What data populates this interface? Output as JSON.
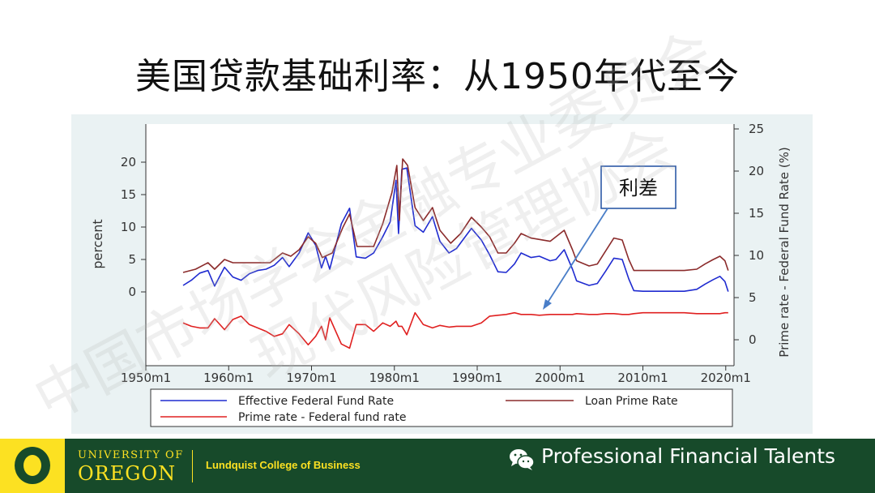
{
  "slide": {
    "title": "美国贷款基础利率：从1950年代至今"
  },
  "chart_data": {
    "type": "line",
    "x_ticks": [
      "1950m1",
      "1960m1",
      "1970m1",
      "1980m1",
      "1990m1",
      "2000m1",
      "2010m1",
      "2020m1"
    ],
    "left_axis": {
      "label": "percent",
      "ticks": [
        0,
        5,
        10,
        15,
        20
      ]
    },
    "right_axis": {
      "label": "Prime rate - Federal Fund Rate (%)",
      "ticks": [
        0,
        5,
        10,
        15,
        20,
        25
      ]
    },
    "annotation": "利差",
    "legend": {
      "placement": "bottom",
      "entries": [
        "Effective Federal Fund Rate",
        "Loan Prime Rate",
        "Prime rate - Federal fund rate"
      ]
    },
    "colors": {
      "effr": "#1f2bd0",
      "prime": "#8b2b2b",
      "spread": "#e02020"
    },
    "series": [
      {
        "name": "Effective Federal Fund Rate",
        "axis": "left",
        "points": [
          [
            1954.5,
            1.0
          ],
          [
            1955.5,
            1.8
          ],
          [
            1956.5,
            2.9
          ],
          [
            1957.5,
            3.3
          ],
          [
            1958.3,
            0.9
          ],
          [
            1959.5,
            3.8
          ],
          [
            1960.5,
            2.3
          ],
          [
            1961.5,
            1.8
          ],
          [
            1962.5,
            2.8
          ],
          [
            1963.5,
            3.3
          ],
          [
            1964.5,
            3.5
          ],
          [
            1965.5,
            4.1
          ],
          [
            1966.5,
            5.3
          ],
          [
            1967.3,
            3.9
          ],
          [
            1968.5,
            6.0
          ],
          [
            1969.6,
            9.1
          ],
          [
            1970.5,
            7.2
          ],
          [
            1971.2,
            3.7
          ],
          [
            1971.7,
            5.5
          ],
          [
            1972.2,
            3.5
          ],
          [
            1973.6,
            10.5
          ],
          [
            1974.6,
            12.9
          ],
          [
            1975.4,
            5.4
          ],
          [
            1976.5,
            5.2
          ],
          [
            1977.5,
            6.0
          ],
          [
            1978.6,
            8.5
          ],
          [
            1979.5,
            10.8
          ],
          [
            1980.2,
            17.2
          ],
          [
            1980.5,
            9.0
          ],
          [
            1980.9,
            18.9
          ],
          [
            1981.5,
            19.1
          ],
          [
            1982.5,
            10.2
          ],
          [
            1983.5,
            9.2
          ],
          [
            1984.6,
            11.6
          ],
          [
            1985.5,
            7.8
          ],
          [
            1986.6,
            6.0
          ],
          [
            1987.5,
            6.7
          ],
          [
            1989.3,
            9.8
          ],
          [
            1990.5,
            8.0
          ],
          [
            1991.5,
            5.7
          ],
          [
            1992.5,
            3.1
          ],
          [
            1993.5,
            3.0
          ],
          [
            1994.5,
            4.3
          ],
          [
            1995.3,
            6.0
          ],
          [
            1996.5,
            5.3
          ],
          [
            1997.5,
            5.5
          ],
          [
            1998.8,
            4.8
          ],
          [
            1999.5,
            5.0
          ],
          [
            2000.5,
            6.5
          ],
          [
            2001.5,
            3.5
          ],
          [
            2002.0,
            1.7
          ],
          [
            2003.5,
            1.0
          ],
          [
            2004.5,
            1.3
          ],
          [
            2005.5,
            3.2
          ],
          [
            2006.5,
            5.2
          ],
          [
            2007.5,
            5.0
          ],
          [
            2008.3,
            2.0
          ],
          [
            2008.9,
            0.2
          ],
          [
            2010.0,
            0.1
          ],
          [
            2012.0,
            0.1
          ],
          [
            2015.0,
            0.1
          ],
          [
            2016.5,
            0.4
          ],
          [
            2017.5,
            1.2
          ],
          [
            2018.5,
            1.9
          ],
          [
            2019.3,
            2.4
          ],
          [
            2019.9,
            1.6
          ],
          [
            2020.3,
            0.05
          ]
        ]
      },
      {
        "name": "Loan Prime Rate",
        "axis": "left",
        "points": [
          [
            1954.5,
            3.0
          ],
          [
            1956.0,
            3.5
          ],
          [
            1957.5,
            4.5
          ],
          [
            1958.3,
            3.5
          ],
          [
            1959.5,
            5.0
          ],
          [
            1960.5,
            4.5
          ],
          [
            1965.0,
            4.5
          ],
          [
            1966.5,
            6.0
          ],
          [
            1967.5,
            5.5
          ],
          [
            1968.5,
            6.5
          ],
          [
            1969.6,
            8.5
          ],
          [
            1970.5,
            7.5
          ],
          [
            1971.3,
            5.3
          ],
          [
            1972.5,
            6.0
          ],
          [
            1973.8,
            10.0
          ],
          [
            1974.6,
            12.0
          ],
          [
            1975.5,
            7.0
          ],
          [
            1977.5,
            7.0
          ],
          [
            1978.6,
            10.5
          ],
          [
            1979.7,
            15.3
          ],
          [
            1980.3,
            19.5
          ],
          [
            1980.6,
            11.0
          ],
          [
            1981.0,
            20.5
          ],
          [
            1981.6,
            19.5
          ],
          [
            1982.5,
            13.0
          ],
          [
            1983.5,
            11.0
          ],
          [
            1984.6,
            13.0
          ],
          [
            1985.5,
            9.5
          ],
          [
            1986.8,
            7.5
          ],
          [
            1988.0,
            9.0
          ],
          [
            1989.3,
            11.5
          ],
          [
            1990.5,
            10.0
          ],
          [
            1991.5,
            8.5
          ],
          [
            1992.5,
            6.0
          ],
          [
            1993.5,
            6.0
          ],
          [
            1994.5,
            7.5
          ],
          [
            1995.3,
            9.0
          ],
          [
            1996.5,
            8.3
          ],
          [
            1998.8,
            7.8
          ],
          [
            2000.5,
            9.5
          ],
          [
            2001.5,
            6.5
          ],
          [
            2002.0,
            4.8
          ],
          [
            2003.5,
            4.0
          ],
          [
            2004.5,
            4.3
          ],
          [
            2005.5,
            6.3
          ],
          [
            2006.5,
            8.3
          ],
          [
            2007.5,
            8.0
          ],
          [
            2008.3,
            5.0
          ],
          [
            2008.9,
            3.3
          ],
          [
            2015.0,
            3.3
          ],
          [
            2016.5,
            3.5
          ],
          [
            2017.5,
            4.3
          ],
          [
            2018.5,
            5.0
          ],
          [
            2019.3,
            5.5
          ],
          [
            2019.9,
            4.8
          ],
          [
            2020.3,
            3.3
          ]
        ]
      },
      {
        "name": "Prime rate - Federal fund rate",
        "axis": "right",
        "points": [
          [
            1954.5,
            2.0
          ],
          [
            1955.5,
            1.6
          ],
          [
            1956.5,
            1.4
          ],
          [
            1957.5,
            1.4
          ],
          [
            1958.3,
            2.5
          ],
          [
            1959.5,
            1.2
          ],
          [
            1960.5,
            2.4
          ],
          [
            1961.5,
            2.8
          ],
          [
            1962.5,
            1.8
          ],
          [
            1963.5,
            1.4
          ],
          [
            1964.5,
            1.0
          ],
          [
            1965.5,
            0.4
          ],
          [
            1966.5,
            0.7
          ],
          [
            1967.3,
            1.8
          ],
          [
            1968.5,
            0.7
          ],
          [
            1969.6,
            -0.6
          ],
          [
            1970.5,
            0.4
          ],
          [
            1971.2,
            1.6
          ],
          [
            1971.7,
            0.0
          ],
          [
            1972.2,
            2.6
          ],
          [
            1973.6,
            -0.5
          ],
          [
            1974.6,
            -1.0
          ],
          [
            1975.4,
            1.8
          ],
          [
            1976.5,
            1.8
          ],
          [
            1977.5,
            1.0
          ],
          [
            1978.6,
            2.0
          ],
          [
            1979.5,
            1.6
          ],
          [
            1980.2,
            2.2
          ],
          [
            1980.5,
            1.6
          ],
          [
            1980.9,
            1.6
          ],
          [
            1981.5,
            0.6
          ],
          [
            1982.5,
            3.2
          ],
          [
            1983.5,
            1.8
          ],
          [
            1984.6,
            1.4
          ],
          [
            1985.5,
            1.7
          ],
          [
            1986.6,
            1.5
          ],
          [
            1987.5,
            1.6
          ],
          [
            1989.3,
            1.6
          ],
          [
            1990.5,
            2.0
          ],
          [
            1991.5,
            2.8
          ],
          [
            1992.5,
            2.9
          ],
          [
            1993.5,
            3.0
          ],
          [
            1994.5,
            3.2
          ],
          [
            1995.3,
            3.0
          ],
          [
            1996.5,
            3.0
          ],
          [
            1997.5,
            2.9
          ],
          [
            1998.8,
            3.0
          ],
          [
            1999.5,
            3.0
          ],
          [
            2000.5,
            3.0
          ],
          [
            2001.5,
            3.0
          ],
          [
            2002.0,
            3.1
          ],
          [
            2003.5,
            3.0
          ],
          [
            2004.5,
            3.0
          ],
          [
            2005.5,
            3.1
          ],
          [
            2006.5,
            3.1
          ],
          [
            2007.5,
            3.0
          ],
          [
            2008.3,
            3.0
          ],
          [
            2008.9,
            3.1
          ],
          [
            2010.0,
            3.2
          ],
          [
            2012.0,
            3.2
          ],
          [
            2015.0,
            3.2
          ],
          [
            2016.5,
            3.1
          ],
          [
            2017.5,
            3.1
          ],
          [
            2018.5,
            3.1
          ],
          [
            2019.3,
            3.1
          ],
          [
            2019.9,
            3.2
          ],
          [
            2020.3,
            3.2
          ]
        ]
      }
    ]
  },
  "footer": {
    "university_top": "UNIVERSITY OF",
    "university_main": "OREGON",
    "college": "Lundquist College of Business",
    "brand": "Professional Financial Talents"
  }
}
